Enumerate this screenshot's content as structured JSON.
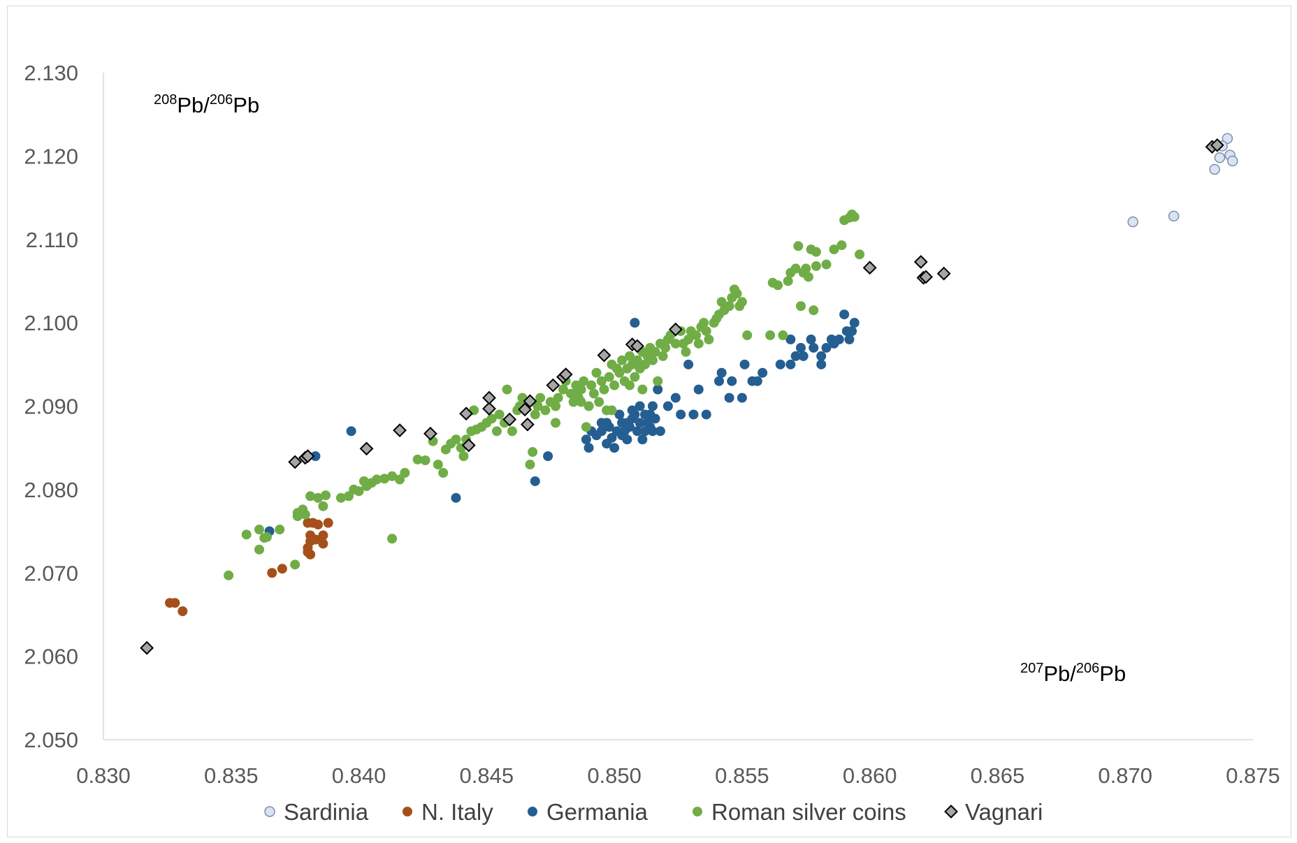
{
  "chart_data": {
    "type": "scatter",
    "title": "",
    "xlabel": {
      "sup1": "207",
      "main1": "Pb/",
      "sup2": "206",
      "main2": "Pb"
    },
    "ylabel": {
      "sup1": "208",
      "main1": "Pb/",
      "sup2": "206",
      "main2": "Pb"
    },
    "xlim": [
      0.83,
      0.875
    ],
    "ylim": [
      2.05,
      2.13
    ],
    "x_ticks": [
      "0.830",
      "0.835",
      "0.840",
      "0.845",
      "0.850",
      "0.855",
      "0.860",
      "0.865",
      "0.870",
      "0.875"
    ],
    "y_ticks": [
      "2.050",
      "2.060",
      "2.070",
      "2.080",
      "2.090",
      "2.100",
      "2.110",
      "2.120",
      "2.130"
    ],
    "grid": false,
    "legend_position": "bottom",
    "series": [
      {
        "name": "Sardinia",
        "marker": "circle",
        "color": "#dae3f3",
        "stroke": "#7f8fa6",
        "points": [
          [
            0.8703,
            2.1121
          ],
          [
            0.8719,
            2.1128
          ],
          [
            0.8735,
            2.1184
          ],
          [
            0.8737,
            2.1198
          ],
          [
            0.874,
            2.1221
          ],
          [
            0.8741,
            2.1201
          ],
          [
            0.8742,
            2.1194
          ],
          [
            0.8738,
            2.1212
          ]
        ]
      },
      {
        "name": "N. Italy",
        "marker": "circle",
        "color": "#a5501a",
        "points": [
          [
            0.8326,
            2.0664
          ],
          [
            0.8328,
            2.0664
          ],
          [
            0.8331,
            2.0654
          ],
          [
            0.8366,
            2.07
          ],
          [
            0.837,
            2.0705
          ],
          [
            0.838,
            2.0725
          ],
          [
            0.838,
            2.073
          ],
          [
            0.8381,
            2.0738
          ],
          [
            0.8381,
            2.0745
          ],
          [
            0.838,
            2.076
          ],
          [
            0.8382,
            2.076
          ],
          [
            0.8384,
            2.0758
          ],
          [
            0.8386,
            2.0735
          ],
          [
            0.8386,
            2.0745
          ],
          [
            0.8388,
            2.076
          ],
          [
            0.8383,
            2.074
          ],
          [
            0.8381,
            2.0722
          ]
        ]
      },
      {
        "name": "Germania",
        "marker": "circle",
        "color": "#255e91",
        "points": [
          [
            0.8365,
            2.075
          ],
          [
            0.8383,
            2.084
          ],
          [
            0.8397,
            2.087
          ],
          [
            0.8438,
            2.079
          ],
          [
            0.8469,
            2.081
          ],
          [
            0.8474,
            2.084
          ],
          [
            0.8489,
            2.086
          ],
          [
            0.849,
            2.085
          ],
          [
            0.8491,
            2.087
          ],
          [
            0.8493,
            2.0865
          ],
          [
            0.8495,
            2.087
          ],
          [
            0.8497,
            2.0855
          ],
          [
            0.8497,
            2.088
          ],
          [
            0.8499,
            2.0862
          ],
          [
            0.85,
            2.085
          ],
          [
            0.8501,
            2.087
          ],
          [
            0.8502,
            2.089
          ],
          [
            0.8503,
            2.088
          ],
          [
            0.8503,
            2.0865
          ],
          [
            0.8504,
            2.087
          ],
          [
            0.8505,
            2.086
          ],
          [
            0.8505,
            2.088
          ],
          [
            0.8506,
            2.0875
          ],
          [
            0.8507,
            2.0885
          ],
          [
            0.8508,
            2.089
          ],
          [
            0.8509,
            2.087
          ],
          [
            0.851,
            2.09
          ],
          [
            0.851,
            2.088
          ],
          [
            0.8511,
            2.086
          ],
          [
            0.8512,
            2.089
          ],
          [
            0.8512,
            2.087
          ],
          [
            0.8513,
            2.088
          ],
          [
            0.8514,
            2.089
          ],
          [
            0.8515,
            2.09
          ],
          [
            0.8515,
            2.087
          ],
          [
            0.8516,
            2.0885
          ],
          [
            0.8517,
            2.092
          ],
          [
            0.8518,
            2.087
          ],
          [
            0.8508,
            2.1
          ],
          [
            0.8521,
            2.09
          ],
          [
            0.8524,
            2.091
          ],
          [
            0.8526,
            2.089
          ],
          [
            0.8529,
            2.095
          ],
          [
            0.8531,
            2.089
          ],
          [
            0.8533,
            2.092
          ],
          [
            0.8536,
            2.089
          ],
          [
            0.8541,
            2.093
          ],
          [
            0.8542,
            2.094
          ],
          [
            0.8545,
            2.091
          ],
          [
            0.8546,
            2.093
          ],
          [
            0.855,
            2.091
          ],
          [
            0.8551,
            2.095
          ],
          [
            0.8554,
            2.093
          ],
          [
            0.8556,
            2.093
          ],
          [
            0.8558,
            2.094
          ],
          [
            0.8565,
            2.095
          ],
          [
            0.8569,
            2.098
          ],
          [
            0.8569,
            2.095
          ],
          [
            0.8571,
            2.096
          ],
          [
            0.8573,
            2.097
          ],
          [
            0.8574,
            2.096
          ],
          [
            0.8577,
            2.098
          ],
          [
            0.8578,
            2.097
          ],
          [
            0.8581,
            2.096
          ],
          [
            0.8581,
            2.095
          ],
          [
            0.8583,
            2.097
          ],
          [
            0.8585,
            2.098
          ],
          [
            0.8586,
            2.0975
          ],
          [
            0.8588,
            2.098
          ],
          [
            0.859,
            2.101
          ],
          [
            0.8591,
            2.099
          ],
          [
            0.8592,
            2.098
          ],
          [
            0.8593,
            2.099
          ],
          [
            0.8594,
            2.1
          ],
          [
            0.8495,
            2.088
          ],
          [
            0.8498,
            2.0875
          ],
          [
            0.8507,
            2.0895
          ],
          [
            0.8514,
            2.0875
          ]
        ]
      },
      {
        "name": "Roman silver coins",
        "marker": "circle",
        "color": "#70ad47",
        "points": [
          [
            0.8349,
            2.0697
          ],
          [
            0.8356,
            2.0746
          ],
          [
            0.8361,
            2.0728
          ],
          [
            0.8361,
            2.0752
          ],
          [
            0.8363,
            2.0742
          ],
          [
            0.8364,
            2.0743
          ],
          [
            0.8369,
            2.0752
          ],
          [
            0.8375,
            2.071
          ],
          [
            0.8376,
            2.0772
          ],
          [
            0.8376,
            2.0768
          ],
          [
            0.8378,
            2.0776
          ],
          [
            0.8379,
            2.077
          ],
          [
            0.8381,
            2.0792
          ],
          [
            0.8384,
            2.079
          ],
          [
            0.8386,
            2.078
          ],
          [
            0.8387,
            2.0793
          ],
          [
            0.8393,
            2.079
          ],
          [
            0.8396,
            2.0792
          ],
          [
            0.8398,
            2.08
          ],
          [
            0.84,
            2.0798
          ],
          [
            0.8402,
            2.081
          ],
          [
            0.8403,
            2.0804
          ],
          [
            0.8405,
            2.0808
          ],
          [
            0.8407,
            2.0812
          ],
          [
            0.841,
            2.0813
          ],
          [
            0.8413,
            2.0816
          ],
          [
            0.8413,
            2.0741
          ],
          [
            0.8416,
            2.0812
          ],
          [
            0.8418,
            2.082
          ],
          [
            0.8423,
            2.0836
          ],
          [
            0.8426,
            2.0835
          ],
          [
            0.8429,
            2.0858
          ],
          [
            0.8431,
            2.083
          ],
          [
            0.8433,
            2.082
          ],
          [
            0.8434,
            2.0848
          ],
          [
            0.8436,
            2.0855
          ],
          [
            0.8438,
            2.086
          ],
          [
            0.844,
            2.085
          ],
          [
            0.8441,
            2.084
          ],
          [
            0.8442,
            2.086
          ],
          [
            0.8444,
            2.087
          ],
          [
            0.8445,
            2.0895
          ],
          [
            0.8446,
            2.0872
          ],
          [
            0.8448,
            2.0875
          ],
          [
            0.845,
            2.088
          ],
          [
            0.8452,
            2.0885
          ],
          [
            0.8454,
            2.087
          ],
          [
            0.8455,
            2.089
          ],
          [
            0.8457,
            2.088
          ],
          [
            0.8458,
            2.092
          ],
          [
            0.846,
            2.087
          ],
          [
            0.8462,
            2.0895
          ],
          [
            0.8463,
            2.09
          ],
          [
            0.8464,
            2.091
          ],
          [
            0.8466,
            2.0905
          ],
          [
            0.8467,
            2.083
          ],
          [
            0.8468,
            2.0845
          ],
          [
            0.8469,
            2.089
          ],
          [
            0.847,
            2.09
          ],
          [
            0.8471,
            2.091
          ],
          [
            0.8473,
            2.0895
          ],
          [
            0.8475,
            2.0905
          ],
          [
            0.8477,
            2.088
          ],
          [
            0.8477,
            2.09
          ],
          [
            0.8478,
            2.091
          ],
          [
            0.848,
            2.092
          ],
          [
            0.8481,
            2.093
          ],
          [
            0.8483,
            2.0915
          ],
          [
            0.8484,
            2.0905
          ],
          [
            0.8485,
            2.0925
          ],
          [
            0.8486,
            2.091
          ],
          [
            0.8487,
            2.092
          ],
          [
            0.8488,
            2.093
          ],
          [
            0.8489,
            2.0875
          ],
          [
            0.849,
            2.09
          ],
          [
            0.8491,
            2.0925
          ],
          [
            0.8492,
            2.0915
          ],
          [
            0.8493,
            2.094
          ],
          [
            0.8494,
            2.0905
          ],
          [
            0.8495,
            2.093
          ],
          [
            0.8496,
            2.092
          ],
          [
            0.8497,
            2.0895
          ],
          [
            0.8498,
            2.0935
          ],
          [
            0.8499,
            2.095
          ],
          [
            0.85,
            2.0925
          ],
          [
            0.8501,
            2.0945
          ],
          [
            0.8502,
            2.094
          ],
          [
            0.8503,
            2.0955
          ],
          [
            0.8504,
            2.093
          ],
          [
            0.8505,
            2.0945
          ],
          [
            0.8506,
            2.096
          ],
          [
            0.8507,
            2.095
          ],
          [
            0.8508,
            2.0935
          ],
          [
            0.8509,
            2.0955
          ],
          [
            0.851,
            2.0945
          ],
          [
            0.8511,
            2.0965
          ],
          [
            0.8512,
            2.095
          ],
          [
            0.8513,
            2.096
          ],
          [
            0.8514,
            2.097
          ],
          [
            0.8515,
            2.0955
          ],
          [
            0.8516,
            2.0965
          ],
          [
            0.8517,
            2.093
          ],
          [
            0.8518,
            2.0975
          ],
          [
            0.8519,
            2.096
          ],
          [
            0.852,
            2.097
          ],
          [
            0.8521,
            2.098
          ],
          [
            0.8522,
            2.0985
          ],
          [
            0.8524,
            2.0975
          ],
          [
            0.8526,
            2.099
          ],
          [
            0.8527,
            2.0975
          ],
          [
            0.8528,
            2.0965
          ],
          [
            0.8529,
            2.098
          ],
          [
            0.853,
            2.099
          ],
          [
            0.8532,
            2.0985
          ],
          [
            0.8533,
            2.0975
          ],
          [
            0.8534,
            2.0995
          ],
          [
            0.8535,
            2.1
          ],
          [
            0.8536,
            2.099
          ],
          [
            0.8537,
            2.098
          ],
          [
            0.8539,
            2.1
          ],
          [
            0.854,
            2.1005
          ],
          [
            0.8541,
            2.101
          ],
          [
            0.8542,
            2.1025
          ],
          [
            0.8543,
            2.1015
          ],
          [
            0.8545,
            2.102
          ],
          [
            0.8546,
            2.103
          ],
          [
            0.8547,
            2.104
          ],
          [
            0.8548,
            2.1035
          ],
          [
            0.8549,
            2.102
          ],
          [
            0.855,
            2.1025
          ],
          [
            0.8552,
            2.0985
          ],
          [
            0.8561,
            2.0985
          ],
          [
            0.8562,
            2.1048
          ],
          [
            0.8564,
            2.1045
          ],
          [
            0.8566,
            2.0985
          ],
          [
            0.8568,
            2.105
          ],
          [
            0.8569,
            2.106
          ],
          [
            0.8571,
            2.1065
          ],
          [
            0.8572,
            2.1092
          ],
          [
            0.8573,
            2.102
          ],
          [
            0.8574,
            2.106
          ],
          [
            0.8575,
            2.1065
          ],
          [
            0.8576,
            2.1055
          ],
          [
            0.8577,
            2.1088
          ],
          [
            0.8578,
            2.1015
          ],
          [
            0.8579,
            2.1068
          ],
          [
            0.8579,
            2.1085
          ],
          [
            0.8583,
            2.107
          ],
          [
            0.8586,
            2.1088
          ],
          [
            0.8589,
            2.1093
          ],
          [
            0.859,
            2.1123
          ],
          [
            0.8592,
            2.1126
          ],
          [
            0.8593,
            2.113
          ],
          [
            0.8594,
            2.1127
          ],
          [
            0.8596,
            2.1082
          ],
          [
            0.8511,
            2.092
          ],
          [
            0.8506,
            2.0925
          ],
          [
            0.8499,
            2.0895
          ],
          [
            0.8487,
            2.0905
          ],
          [
            0.8485,
            2.0915
          ]
        ]
      },
      {
        "name": "Vagnari",
        "marker": "diamond",
        "color": "#a6a6a6",
        "stroke": "#000000",
        "points": [
          [
            0.8317,
            2.061
          ],
          [
            0.8375,
            2.0833
          ],
          [
            0.8379,
            2.0838
          ],
          [
            0.838,
            2.084
          ],
          [
            0.8403,
            2.0849
          ],
          [
            0.8416,
            2.0871
          ],
          [
            0.8428,
            2.0867
          ],
          [
            0.8442,
            2.0891
          ],
          [
            0.8443,
            2.0853
          ],
          [
            0.8451,
            2.0897
          ],
          [
            0.8451,
            2.091
          ],
          [
            0.8459,
            2.0884
          ],
          [
            0.8465,
            2.0896
          ],
          [
            0.8466,
            2.0878
          ],
          [
            0.8467,
            2.0906
          ],
          [
            0.8476,
            2.0925
          ],
          [
            0.848,
            2.0935
          ],
          [
            0.8481,
            2.0938
          ],
          [
            0.8496,
            2.0961
          ],
          [
            0.8507,
            2.0974
          ],
          [
            0.8509,
            2.0972
          ],
          [
            0.8524,
            2.0992
          ],
          [
            0.86,
            2.1066
          ],
          [
            0.862,
            2.1073
          ],
          [
            0.8621,
            2.1054
          ],
          [
            0.8622,
            2.1055
          ],
          [
            0.8629,
            2.1059
          ],
          [
            0.8734,
            2.1211
          ],
          [
            0.8736,
            2.1213
          ]
        ]
      }
    ]
  }
}
